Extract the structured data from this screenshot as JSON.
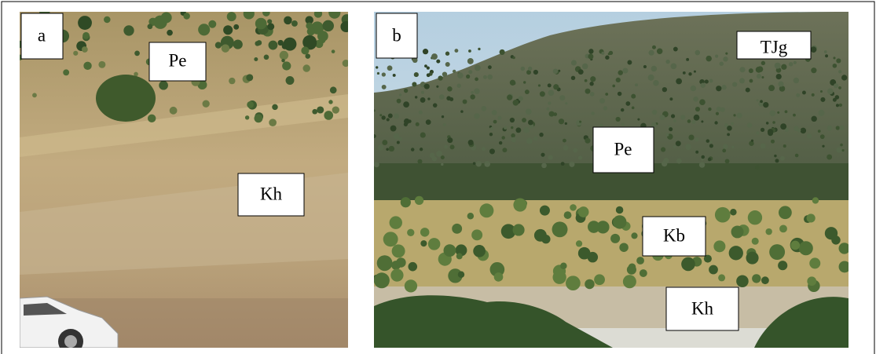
{
  "panels": [
    {
      "label": "a",
      "units": [
        "Pe",
        "Kh"
      ]
    },
    {
      "label": "b",
      "units": [
        "TJg",
        "Pe",
        "Kb",
        "Kh"
      ]
    }
  ]
}
